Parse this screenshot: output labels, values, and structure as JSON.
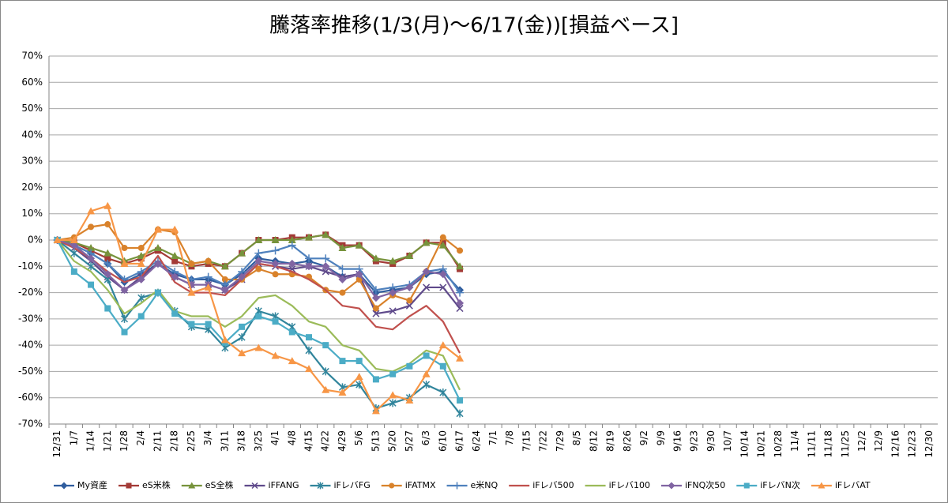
{
  "chart_data": {
    "type": "line",
    "title": "騰落率推移(1/3(月)～6/17(金))[損益ベース]",
    "categories": [
      "12/31",
      "1/7",
      "1/14",
      "1/21",
      "1/28",
      "2/4",
      "2/11",
      "2/18",
      "2/25",
      "3/4",
      "3/11",
      "3/18",
      "3/25",
      "4/1",
      "4/8",
      "4/15",
      "4/22",
      "4/29",
      "5/6",
      "5/13",
      "5/20",
      "5/27",
      "6/3",
      "6/10",
      "6/17",
      "6/24",
      "7/1",
      "7/8",
      "7/15",
      "7/22",
      "7/29",
      "8/5",
      "8/12",
      "8/19",
      "8/26",
      "9/2",
      "9/9",
      "9/16",
      "9/23",
      "9/30",
      "10/7",
      "10/14",
      "10/21",
      "10/28",
      "11/4",
      "11/11",
      "11/18",
      "11/25",
      "12/2",
      "12/9",
      "12/16",
      "12/23",
      "12/30"
    ],
    "ylim": [
      -70,
      70
    ],
    "yticks": [
      {
        "value": 70,
        "label": "70%"
      },
      {
        "value": 60,
        "label": "60%"
      },
      {
        "value": 50,
        "label": "50%"
      },
      {
        "value": 40,
        "label": "40%"
      },
      {
        "value": 30,
        "label": "30%"
      },
      {
        "value": 20,
        "label": "20%"
      },
      {
        "value": 10,
        "label": "10%"
      },
      {
        "value": 0,
        "label": "0%"
      },
      {
        "value": -10,
        "label": "-10%"
      },
      {
        "value": -20,
        "label": "-20%"
      },
      {
        "value": -30,
        "label": "-30%"
      },
      {
        "value": -40,
        "label": "-40%"
      },
      {
        "value": -50,
        "label": "-50%"
      },
      {
        "value": -60,
        "label": "-60%"
      },
      {
        "value": -70,
        "label": "-70%"
      }
    ],
    "grid": true,
    "legend": "bottom",
    "series": [
      {
        "name": "My資産",
        "color": "#2f5d9e",
        "marker": "diamond",
        "values": [
          0,
          -2,
          -5,
          -9,
          -16,
          -13,
          -9,
          -13,
          -15,
          -15,
          -17,
          -13,
          -7,
          -8,
          -9,
          -8,
          -10,
          -14,
          -13,
          -20,
          -19,
          -18,
          -13,
          -12,
          -19,
          null,
          null,
          null,
          null,
          null,
          null,
          null,
          null,
          null,
          null,
          null,
          null,
          null,
          null,
          null,
          null,
          null,
          null,
          null,
          null,
          null,
          null,
          null,
          null,
          null,
          null,
          null,
          null
        ]
      },
      {
        "name": "eS米株",
        "color": "#a33a36",
        "marker": "square",
        "values": [
          0,
          -1,
          -4,
          -7,
          -9,
          -7,
          -4,
          -8,
          -10,
          -9,
          -10,
          -5,
          0,
          0,
          1,
          1,
          2,
          -2,
          -2,
          -8,
          -9,
          -6,
          -1,
          -1,
          -11,
          null,
          null,
          null,
          null,
          null,
          null,
          null,
          null,
          null,
          null,
          null,
          null,
          null,
          null,
          null,
          null,
          null,
          null,
          null,
          null,
          null,
          null,
          null,
          null,
          null,
          null,
          null,
          null
        ]
      },
      {
        "name": "eS全株",
        "color": "#77933c",
        "marker": "triangle",
        "values": [
          0,
          -1,
          -3,
          -5,
          -8,
          -6,
          -3,
          -6,
          -9,
          -8,
          -10,
          -5,
          0,
          0,
          0,
          1,
          2,
          -3,
          -2,
          -7,
          -8,
          -6,
          -1,
          -2,
          -10,
          null,
          null,
          null,
          null,
          null,
          null,
          null,
          null,
          null,
          null,
          null,
          null,
          null,
          null,
          null,
          null,
          null,
          null,
          null,
          null,
          null,
          null,
          null,
          null,
          null,
          null,
          null,
          null
        ]
      },
      {
        "name": "iFFANG",
        "color": "#5f4a8b",
        "marker": "x",
        "values": [
          0,
          -3,
          -8,
          -14,
          -19,
          -14,
          -9,
          -14,
          -17,
          -17,
          -19,
          -15,
          -9,
          -10,
          -11,
          -10,
          -12,
          -14,
          -13,
          -28,
          -27,
          -25,
          -18,
          -18,
          -26,
          null,
          null,
          null,
          null,
          null,
          null,
          null,
          null,
          null,
          null,
          null,
          null,
          null,
          null,
          null,
          null,
          null,
          null,
          null,
          null,
          null,
          null,
          null,
          null,
          null,
          null,
          null,
          null
        ]
      },
      {
        "name": "iFレバFG",
        "color": "#31859c",
        "marker": "star",
        "values": [
          0,
          -5,
          -10,
          -15,
          -30,
          -22,
          -20,
          -27,
          -33,
          -34,
          -41,
          -37,
          -27,
          -29,
          -33,
          -42,
          -50,
          -56,
          -55,
          -64,
          -62,
          -60,
          -55,
          -58,
          -66,
          null,
          null,
          null,
          null,
          null,
          null,
          null,
          null,
          null,
          null,
          null,
          null,
          null,
          null,
          null,
          null,
          null,
          null,
          null,
          null,
          null,
          null,
          null,
          null,
          null,
          null,
          null,
          null
        ]
      },
      {
        "name": "iFATMX",
        "color": "#d9822b",
        "marker": "circle",
        "values": [
          0,
          1,
          5,
          6,
          -3,
          -3,
          4,
          3,
          -9,
          -8,
          -15,
          -15,
          -11,
          -13,
          -13,
          -14,
          -19,
          -20,
          -15,
          -26,
          -21,
          -23,
          -12,
          1,
          -4,
          null,
          null,
          null,
          null,
          null,
          null,
          null,
          null,
          null,
          null,
          null,
          null,
          null,
          null,
          null,
          null,
          null,
          null,
          null,
          null,
          null,
          null,
          null,
          null,
          null,
          null,
          null,
          null
        ]
      },
      {
        "name": "e米NQ",
        "color": "#4f81bd",
        "marker": "plus",
        "values": [
          0,
          -2,
          -5,
          -9,
          -15,
          -12,
          -8,
          -12,
          -15,
          -14,
          -17,
          -12,
          -5,
          -4,
          -2,
          -7,
          -7,
          -11,
          -11,
          -19,
          -18,
          -17,
          -12,
          -11,
          -20,
          null,
          null,
          null,
          null,
          null,
          null,
          null,
          null,
          null,
          null,
          null,
          null,
          null,
          null,
          null,
          null,
          null,
          null,
          null,
          null,
          null,
          null,
          null,
          null,
          null,
          null,
          null,
          null
        ]
      },
      {
        "name": "iFレバ500",
        "color": "#c0504d",
        "marker": "none",
        "values": [
          0,
          -3,
          -7,
          -12,
          -16,
          -14,
          -6,
          -16,
          -20,
          -20,
          -21,
          -15,
          -9,
          -10,
          -12,
          -15,
          -19,
          -25,
          -26,
          -33,
          -34,
          -29,
          -25,
          -31,
          -43,
          null,
          null,
          null,
          null,
          null,
          null,
          null,
          null,
          null,
          null,
          null,
          null,
          null,
          null,
          null,
          null,
          null,
          null,
          null,
          null,
          null,
          null,
          null,
          null,
          null,
          null,
          null,
          null
        ]
      },
      {
        "name": "iFレバ100",
        "color": "#9bbb59",
        "marker": "none",
        "values": [
          0,
          -8,
          -12,
          -19,
          -28,
          -24,
          -19,
          -27,
          -29,
          -29,
          -33,
          -29,
          -22,
          -21,
          -25,
          -31,
          -33,
          -40,
          -42,
          -49,
          -50,
          -47,
          -42,
          -44,
          -57,
          null,
          null,
          null,
          null,
          null,
          null,
          null,
          null,
          null,
          null,
          null,
          null,
          null,
          null,
          null,
          null,
          null,
          null,
          null,
          null,
          null,
          null,
          null,
          null,
          null,
          null,
          null,
          null
        ]
      },
      {
        "name": "iFNQ次50",
        "color": "#8064a2",
        "marker": "diamond",
        "values": [
          0,
          -2,
          -7,
          -13,
          -19,
          -15,
          -9,
          -14,
          -17,
          -17,
          -19,
          -14,
          -8,
          -9,
          -9,
          -10,
          -10,
          -15,
          -13,
          -22,
          -20,
          -18,
          -12,
          -13,
          -24,
          null,
          null,
          null,
          null,
          null,
          null,
          null,
          null,
          null,
          null,
          null,
          null,
          null,
          null,
          null,
          null,
          null,
          null,
          null,
          null,
          null,
          null,
          null,
          null,
          null,
          null,
          null,
          null
        ]
      },
      {
        "name": "iFレバN次",
        "color": "#4bacc6",
        "marker": "square",
        "values": [
          0,
          -12,
          -17,
          -26,
          -35,
          -29,
          -20,
          -28,
          -32,
          -32,
          -39,
          -33,
          -29,
          -31,
          -35,
          -37,
          -40,
          -46,
          -46,
          -53,
          -51,
          -48,
          -44,
          -48,
          -61,
          null,
          null,
          null,
          null,
          null,
          null,
          null,
          null,
          null,
          null,
          null,
          null,
          null,
          null,
          null,
          null,
          null,
          null,
          null,
          null,
          null,
          null,
          null,
          null,
          null,
          null,
          null,
          null
        ]
      },
      {
        "name": "iFレバAT",
        "color": "#f79646",
        "marker": "triangle",
        "values": [
          0,
          0,
          11,
          13,
          -9,
          -9,
          4,
          4,
          -20,
          -18,
          -38,
          -43,
          -41,
          -44,
          -46,
          -49,
          -57,
          -58,
          -52,
          -65,
          -59,
          -61,
          -51,
          -40,
          -45,
          null,
          null,
          null,
          null,
          null,
          null,
          null,
          null,
          null,
          null,
          null,
          null,
          null,
          null,
          null,
          null,
          null,
          null,
          null,
          null,
          null,
          null,
          null,
          null,
          null,
          null,
          null,
          null
        ]
      }
    ]
  }
}
